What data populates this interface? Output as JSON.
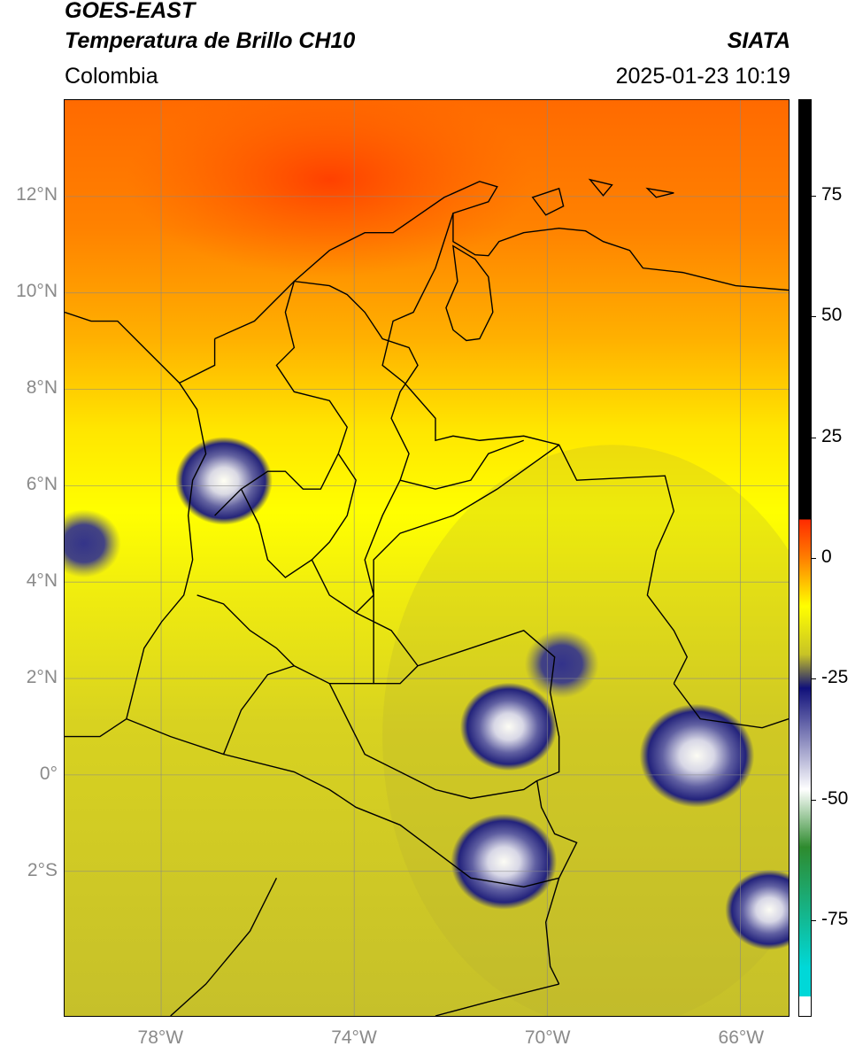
{
  "header": {
    "satellite": "GOES-EAST",
    "product": "Temperatura de Brillo CH10",
    "source": "SIATA",
    "region": "Colombia",
    "timestamp": "2025-01-23 10:19"
  },
  "map": {
    "projection": "PlateCarree",
    "lon_range": [
      -80,
      -65
    ],
    "lat_range": [
      -5,
      14
    ],
    "lat_ticks": [
      {
        "value": 12,
        "label": "12°N"
      },
      {
        "value": 10,
        "label": "10°N"
      },
      {
        "value": 8,
        "label": "8°N"
      },
      {
        "value": 6,
        "label": "6°N"
      },
      {
        "value": 4,
        "label": "4°N"
      },
      {
        "value": 2,
        "label": "2°N"
      },
      {
        "value": 0,
        "label": "0°"
      },
      {
        "value": -2,
        "label": "2°S"
      }
    ],
    "lon_ticks": [
      {
        "value": -78,
        "label": "78°W"
      },
      {
        "value": -74,
        "label": "74°W"
      },
      {
        "value": -70,
        "label": "70°W"
      },
      {
        "value": -66,
        "label": "66°W"
      }
    ],
    "gridlines": true,
    "cold_cloud_clusters": [
      {
        "lon": -79.6,
        "lat": 4.8,
        "temp": -30
      },
      {
        "lon": -76.7,
        "lat": 6.1,
        "temp": -45
      },
      {
        "lon": -70.8,
        "lat": 1.0,
        "temp": -45
      },
      {
        "lon": -66.9,
        "lat": 0.4,
        "temp": -55
      },
      {
        "lon": -70.9,
        "lat": -1.8,
        "temp": -50
      },
      {
        "lon": -65.4,
        "lat": -2.8,
        "temp": -40
      },
      {
        "lon": -69.7,
        "lat": 2.3,
        "temp": -30
      }
    ]
  },
  "colorbar": {
    "range": [
      -95,
      95
    ],
    "ticks": [
      {
        "value": 75,
        "label": "75"
      },
      {
        "value": 50,
        "label": "50"
      },
      {
        "value": 25,
        "label": "25"
      },
      {
        "value": 0,
        "label": "0"
      },
      {
        "value": -25,
        "label": "-25"
      },
      {
        "value": -50,
        "label": "-50"
      },
      {
        "value": -75,
        "label": "-75"
      }
    ],
    "colors": {
      "hot_above": "#000000",
      "warm": "#ff2a00",
      "orange": "#ff7f00",
      "yellow": "#ffff00",
      "olive": "#c8c326",
      "navy": "#10107a",
      "white": "#ffffff",
      "green": "#2e8b2e",
      "cyan": "#00d8d8"
    }
  }
}
